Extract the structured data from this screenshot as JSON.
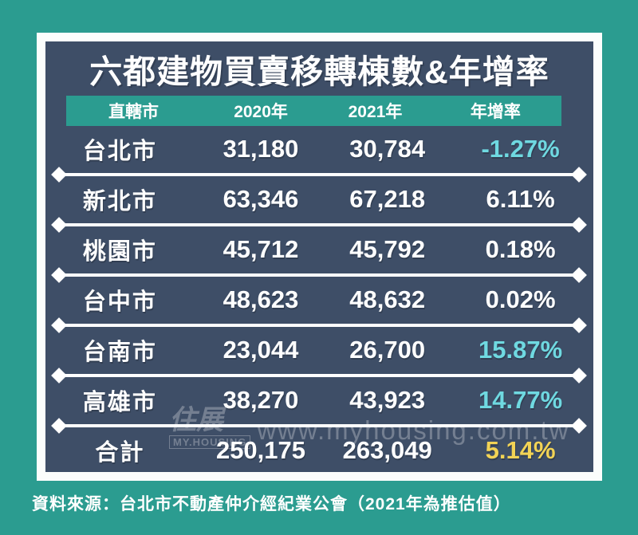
{
  "title": "六都建物買賣移轉棟數&年增率",
  "table": {
    "headers": [
      "直轄市",
      "2020年",
      "2021年",
      "年增率"
    ],
    "rows": [
      {
        "city": "台北市",
        "y2020": "31,180",
        "y2021": "30,784",
        "yoy": "-1.27%",
        "yoy_color": "cyan"
      },
      {
        "city": "新北市",
        "y2020": "63,346",
        "y2021": "67,218",
        "yoy": "6.11%",
        "yoy_color": "white"
      },
      {
        "city": "桃園市",
        "y2020": "45,712",
        "y2021": "45,792",
        "yoy": "0.18%",
        "yoy_color": "white"
      },
      {
        "city": "台中市",
        "y2020": "48,623",
        "y2021": "48,632",
        "yoy": "0.02%",
        "yoy_color": "white"
      },
      {
        "city": "台南市",
        "y2020": "23,044",
        "y2021": "26,700",
        "yoy": "15.87%",
        "yoy_color": "cyan"
      },
      {
        "city": "高雄市",
        "y2020": "38,270",
        "y2021": "43,923",
        "yoy": "14.77%",
        "yoy_color": "cyan"
      },
      {
        "city": "合計",
        "y2020": "250,175",
        "y2021": "263,049",
        "yoy": "5.14%",
        "yoy_color": "yellow"
      }
    ]
  },
  "source": "資料來源：台北市不動產仲介經紀業公會（2021年為推估值）",
  "watermark": {
    "logo_cjk": "住展",
    "logo_en": "MY.HOUSING",
    "url": "www.myhousing.com.tw"
  },
  "colors": {
    "background": "#2b9c90",
    "panel": "#3e4e67",
    "header_band": "#2b9c90",
    "yoy_cyan": "#6fd9e1",
    "yoy_yellow": "#f2d355",
    "text": "#ffffff"
  },
  "chart_data": {
    "type": "table",
    "title": "六都建物買賣移轉棟數&年增率",
    "columns": [
      "直轄市",
      "2020年",
      "2021年",
      "年增率"
    ],
    "rows": [
      [
        "台北市",
        31180,
        30784,
        "-1.27%"
      ],
      [
        "新北市",
        63346,
        67218,
        "6.11%"
      ],
      [
        "桃園市",
        45712,
        45792,
        "0.18%"
      ],
      [
        "台中市",
        48623,
        48632,
        "0.02%"
      ],
      [
        "台南市",
        23044,
        26700,
        "15.87%"
      ],
      [
        "高雄市",
        38270,
        43923,
        "14.77%"
      ],
      [
        "合計",
        250175,
        263049,
        "5.14%"
      ]
    ],
    "source": "資料來源：台北市不動產仲介經紀業公會（2021年為推估值）",
    "legend_position": "none",
    "grid": "row dividers with diamond endpoints"
  }
}
